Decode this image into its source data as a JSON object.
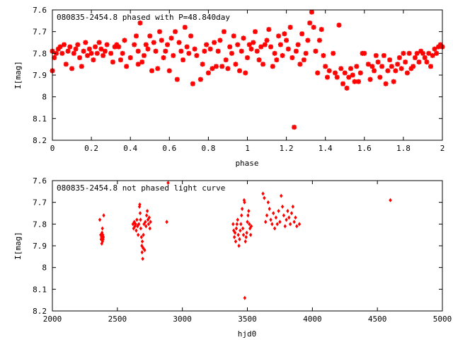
{
  "chart_data": [
    {
      "type": "scatter",
      "title": "080835-2454.8 phased with P=48.840day",
      "xlabel": "phase",
      "ylabel": "I[mag]",
      "xlim": [
        0,
        2
      ],
      "ylim": [
        8.2,
        7.6
      ],
      "y_inverted": true,
      "xticks": [
        "0",
        "0.2",
        "0.4",
        "0.6",
        "0.8",
        "1",
        "1.2",
        "1.4",
        "1.6",
        "1.8",
        "2"
      ],
      "yticks": [
        "7.6",
        "7.7",
        "7.8",
        "7.9",
        "8",
        "8.1",
        "8.2"
      ],
      "marker": "star",
      "color": "#ff0000",
      "points": [
        [
          0.0,
          7.79
        ],
        [
          0.0,
          7.88
        ],
        [
          0.01,
          7.82
        ],
        [
          0.02,
          7.8
        ],
        [
          0.03,
          7.78
        ],
        [
          0.04,
          7.77
        ],
        [
          0.05,
          7.8
        ],
        [
          0.06,
          7.76
        ],
        [
          0.07,
          7.85
        ],
        [
          0.08,
          7.79
        ],
        [
          0.09,
          7.77
        ],
        [
          0.1,
          7.87
        ],
        [
          0.11,
          7.8
        ],
        [
          0.12,
          7.78
        ],
        [
          0.13,
          7.76
        ],
        [
          0.14,
          7.82
        ],
        [
          0.15,
          7.86
        ],
        [
          0.16,
          7.79
        ],
        [
          0.17,
          7.75
        ],
        [
          0.18,
          7.81
        ],
        [
          0.19,
          7.78
        ],
        [
          0.2,
          7.8
        ],
        [
          0.21,
          7.83
        ],
        [
          0.22,
          7.77
        ],
        [
          0.23,
          7.8
        ],
        [
          0.24,
          7.75
        ],
        [
          0.25,
          7.78
        ],
        [
          0.26,
          7.81
        ],
        [
          0.27,
          7.79
        ],
        [
          0.28,
          7.76
        ],
        [
          0.3,
          7.8
        ],
        [
          0.31,
          7.84
        ],
        [
          0.32,
          7.77
        ],
        [
          0.33,
          7.76
        ],
        [
          0.34,
          7.77
        ],
        [
          0.35,
          7.83
        ],
        [
          0.36,
          7.8
        ],
        [
          0.37,
          7.74
        ],
        [
          0.38,
          7.86
        ],
        [
          0.4,
          7.82
        ],
        [
          0.42,
          7.76
        ],
        [
          0.43,
          7.72
        ],
        [
          0.44,
          7.79
        ],
        [
          0.44,
          7.85
        ],
        [
          0.45,
          7.66
        ],
        [
          0.46,
          7.84
        ],
        [
          0.47,
          7.81
        ],
        [
          0.48,
          7.76
        ],
        [
          0.49,
          7.78
        ],
        [
          0.5,
          7.72
        ],
        [
          0.51,
          7.88
        ],
        [
          0.52,
          7.75
        ],
        [
          0.53,
          7.79
        ],
        [
          0.54,
          7.87
        ],
        [
          0.55,
          7.7
        ],
        [
          0.56,
          7.74
        ],
        [
          0.57,
          7.82
        ],
        [
          0.58,
          7.79
        ],
        [
          0.59,
          7.76
        ],
        [
          0.6,
          7.88
        ],
        [
          0.61,
          7.73
        ],
        [
          0.62,
          7.81
        ],
        [
          0.63,
          7.7
        ],
        [
          0.64,
          7.92
        ],
        [
          0.65,
          7.75
        ],
        [
          0.66,
          7.79
        ],
        [
          0.67,
          7.83
        ],
        [
          0.68,
          7.68
        ],
        [
          0.69,
          7.77
        ],
        [
          0.7,
          7.8
        ],
        [
          0.71,
          7.72
        ],
        [
          0.72,
          7.94
        ],
        [
          0.73,
          7.78
        ],
        [
          0.74,
          7.81
        ],
        [
          0.76,
          7.92
        ],
        [
          0.77,
          7.85
        ],
        [
          0.78,
          7.79
        ],
        [
          0.79,
          7.76
        ],
        [
          0.8,
          7.89
        ],
        [
          0.81,
          7.78
        ],
        [
          0.82,
          7.87
        ],
        [
          0.83,
          7.75
        ],
        [
          0.84,
          7.86
        ],
        [
          0.85,
          7.79
        ],
        [
          0.86,
          7.74
        ],
        [
          0.87,
          7.86
        ],
        [
          0.88,
          7.7
        ],
        [
          0.89,
          7.83
        ],
        [
          0.9,
          7.87
        ],
        [
          0.91,
          7.77
        ],
        [
          0.92,
          7.8
        ],
        [
          0.93,
          7.72
        ],
        [
          0.94,
          7.85
        ],
        [
          0.95,
          7.76
        ],
        [
          0.96,
          7.88
        ],
        [
          0.97,
          7.79
        ],
        [
          0.98,
          7.73
        ],
        [
          0.99,
          7.89
        ],
        [
          1.0,
          7.82
        ],
        [
          1.01,
          7.76
        ],
        [
          1.02,
          7.78
        ],
        [
          1.03,
          7.75
        ],
        [
          1.04,
          7.7
        ],
        [
          1.05,
          7.79
        ],
        [
          1.06,
          7.83
        ],
        [
          1.07,
          7.77
        ],
        [
          1.08,
          7.85
        ],
        [
          1.09,
          7.76
        ],
        [
          1.1,
          7.74
        ],
        [
          1.11,
          7.69
        ],
        [
          1.12,
          7.77
        ],
        [
          1.13,
          7.86
        ],
        [
          1.14,
          7.8
        ],
        [
          1.15,
          7.83
        ],
        [
          1.16,
          7.72
        ],
        [
          1.17,
          7.76
        ],
        [
          1.18,
          7.81
        ],
        [
          1.19,
          7.71
        ],
        [
          1.2,
          7.74
        ],
        [
          1.21,
          7.78
        ],
        [
          1.22,
          7.68
        ],
        [
          1.23,
          7.82
        ],
        [
          1.24,
          8.14
        ],
        [
          1.25,
          7.79
        ],
        [
          1.26,
          7.76
        ],
        [
          1.27,
          7.85
        ],
        [
          1.28,
          7.71
        ],
        [
          1.29,
          7.83
        ],
        [
          1.3,
          7.8
        ],
        [
          1.31,
          7.74
        ],
        [
          1.32,
          7.66
        ],
        [
          1.33,
          7.61
        ],
        [
          1.34,
          7.68
        ],
        [
          1.35,
          7.79
        ],
        [
          1.36,
          7.89
        ],
        [
          1.37,
          7.74
        ],
        [
          1.38,
          7.69
        ],
        [
          1.39,
          7.81
        ],
        [
          1.4,
          7.86
        ],
        [
          1.41,
          7.91
        ],
        [
          1.42,
          7.88
        ],
        [
          1.44,
          7.8
        ],
        [
          1.45,
          7.89
        ],
        [
          1.46,
          7.91
        ],
        [
          1.47,
          7.67
        ],
        [
          1.48,
          7.87
        ],
        [
          1.49,
          7.94
        ],
        [
          1.5,
          7.89
        ],
        [
          1.51,
          7.96
        ],
        [
          1.52,
          7.91
        ],
        [
          1.53,
          7.87
        ],
        [
          1.54,
          7.9
        ],
        [
          1.55,
          7.93
        ],
        [
          1.56,
          7.86
        ],
        [
          1.57,
          7.93
        ],
        [
          1.58,
          7.89
        ],
        [
          1.59,
          7.8
        ],
        [
          1.6,
          7.8
        ],
        [
          1.62,
          7.85
        ],
        [
          1.63,
          7.92
        ],
        [
          1.64,
          7.86
        ],
        [
          1.65,
          7.88
        ],
        [
          1.66,
          7.81
        ],
        [
          1.67,
          7.84
        ],
        [
          1.68,
          7.91
        ],
        [
          1.69,
          7.86
        ],
        [
          1.7,
          7.81
        ],
        [
          1.71,
          7.94
        ],
        [
          1.72,
          7.88
        ],
        [
          1.73,
          7.83
        ],
        [
          1.74,
          7.86
        ],
        [
          1.75,
          7.93
        ],
        [
          1.76,
          7.88
        ],
        [
          1.77,
          7.85
        ],
        [
          1.78,
          7.82
        ],
        [
          1.79,
          7.87
        ],
        [
          1.8,
          7.8
        ],
        [
          1.81,
          7.84
        ],
        [
          1.82,
          7.89
        ],
        [
          1.83,
          7.8
        ],
        [
          1.84,
          7.87
        ],
        [
          1.85,
          7.86
        ],
        [
          1.86,
          7.82
        ],
        [
          1.87,
          7.8
        ],
        [
          1.88,
          7.84
        ],
        [
          1.89,
          7.79
        ],
        [
          1.9,
          7.8
        ],
        [
          1.91,
          7.82
        ],
        [
          1.92,
          7.84
        ],
        [
          1.93,
          7.8
        ],
        [
          1.94,
          7.86
        ],
        [
          1.95,
          7.81
        ],
        [
          1.96,
          7.78
        ],
        [
          1.97,
          7.8
        ],
        [
          1.98,
          7.77
        ],
        [
          1.99,
          7.76
        ],
        [
          2.0,
          7.77
        ]
      ]
    },
    {
      "type": "scatter",
      "title": "080835-2454.8 not phased light curve",
      "xlabel": "hjd0",
      "ylabel": "I[mag]",
      "xlim": [
        2000,
        5000
      ],
      "ylim": [
        8.2,
        7.6
      ],
      "y_inverted": true,
      "xticks": [
        "2000",
        "2500",
        "3000",
        "3500",
        "4000",
        "4500",
        "5000"
      ],
      "yticks": [
        "7.6",
        "7.7",
        "7.8",
        "7.9",
        "8",
        "8.1",
        "8.2"
      ],
      "marker": "diamond",
      "color": "#ff0000",
      "points": [
        [
          2365,
          7.78
        ],
        [
          2372,
          7.85
        ],
        [
          2375,
          7.87
        ],
        [
          2378,
          7.86
        ],
        [
          2380,
          7.89
        ],
        [
          2382,
          7.84
        ],
        [
          2385,
          7.82
        ],
        [
          2386,
          7.88
        ],
        [
          2388,
          7.85
        ],
        [
          2390,
          7.87
        ],
        [
          2392,
          7.86
        ],
        [
          2395,
          7.76
        ],
        [
          2620,
          7.8
        ],
        [
          2625,
          7.82
        ],
        [
          2630,
          7.79
        ],
        [
          2635,
          7.81
        ],
        [
          2640,
          7.8
        ],
        [
          2645,
          7.83
        ],
        [
          2650,
          7.78
        ],
        [
          2655,
          7.81
        ],
        [
          2660,
          7.85
        ],
        [
          2665,
          7.8
        ],
        [
          2670,
          7.72
        ],
        [
          2672,
          7.71
        ],
        [
          2675,
          7.75
        ],
        [
          2678,
          7.78
        ],
        [
          2680,
          7.82
        ],
        [
          2685,
          7.86
        ],
        [
          2688,
          7.9
        ],
        [
          2690,
          7.93
        ],
        [
          2692,
          7.88
        ],
        [
          2695,
          7.96
        ],
        [
          2698,
          7.91
        ],
        [
          2700,
          7.85
        ],
        [
          2705,
          7.8
        ],
        [
          2710,
          7.92
        ],
        [
          2715,
          7.79
        ],
        [
          2720,
          7.81
        ],
        [
          2725,
          7.76
        ],
        [
          2730,
          7.74
        ],
        [
          2735,
          7.78
        ],
        [
          2740,
          7.8
        ],
        [
          2745,
          7.77
        ],
        [
          2750,
          7.82
        ],
        [
          2755,
          7.79
        ],
        [
          2880,
          7.79
        ],
        [
          2890,
          7.61
        ],
        [
          3390,
          7.8
        ],
        [
          3395,
          7.83
        ],
        [
          3400,
          7.86
        ],
        [
          3405,
          7.84
        ],
        [
          3410,
          7.88
        ],
        [
          3415,
          7.82
        ],
        [
          3420,
          7.8
        ],
        [
          3425,
          7.78
        ],
        [
          3430,
          7.85
        ],
        [
          3435,
          7.9
        ],
        [
          3440,
          7.87
        ],
        [
          3445,
          7.83
        ],
        [
          3450,
          7.8
        ],
        [
          3455,
          7.76
        ],
        [
          3460,
          7.73
        ],
        [
          3465,
          7.82
        ],
        [
          3470,
          7.85
        ],
        [
          3475,
          7.69
        ],
        [
          3478,
          7.7
        ],
        [
          3480,
          8.14
        ],
        [
          3485,
          7.88
        ],
        [
          3490,
          7.86
        ],
        [
          3495,
          7.84
        ],
        [
          3500,
          7.79
        ],
        [
          3505,
          7.76
        ],
        [
          3510,
          7.74
        ],
        [
          3515,
          7.8
        ],
        [
          3520,
          7.82
        ],
        [
          3525,
          7.85
        ],
        [
          3530,
          7.81
        ],
        [
          3620,
          7.66
        ],
        [
          3630,
          7.68
        ],
        [
          3640,
          7.79
        ],
        [
          3650,
          7.76
        ],
        [
          3660,
          7.7
        ],
        [
          3670,
          7.73
        ],
        [
          3680,
          7.78
        ],
        [
          3690,
          7.8
        ],
        [
          3700,
          7.75
        ],
        [
          3710,
          7.82
        ],
        [
          3720,
          7.77
        ],
        [
          3730,
          7.8
        ],
        [
          3740,
          7.74
        ],
        [
          3750,
          7.79
        ],
        [
          3760,
          7.67
        ],
        [
          3770,
          7.72
        ],
        [
          3780,
          7.76
        ],
        [
          3790,
          7.81
        ],
        [
          3800,
          7.78
        ],
        [
          3810,
          7.74
        ],
        [
          3820,
          7.77
        ],
        [
          3830,
          7.8
        ],
        [
          3840,
          7.75
        ],
        [
          3850,
          7.72
        ],
        [
          3860,
          7.79
        ],
        [
          3870,
          7.77
        ],
        [
          3880,
          7.81
        ],
        [
          3900,
          7.8
        ],
        [
          4600,
          7.69
        ]
      ]
    }
  ]
}
